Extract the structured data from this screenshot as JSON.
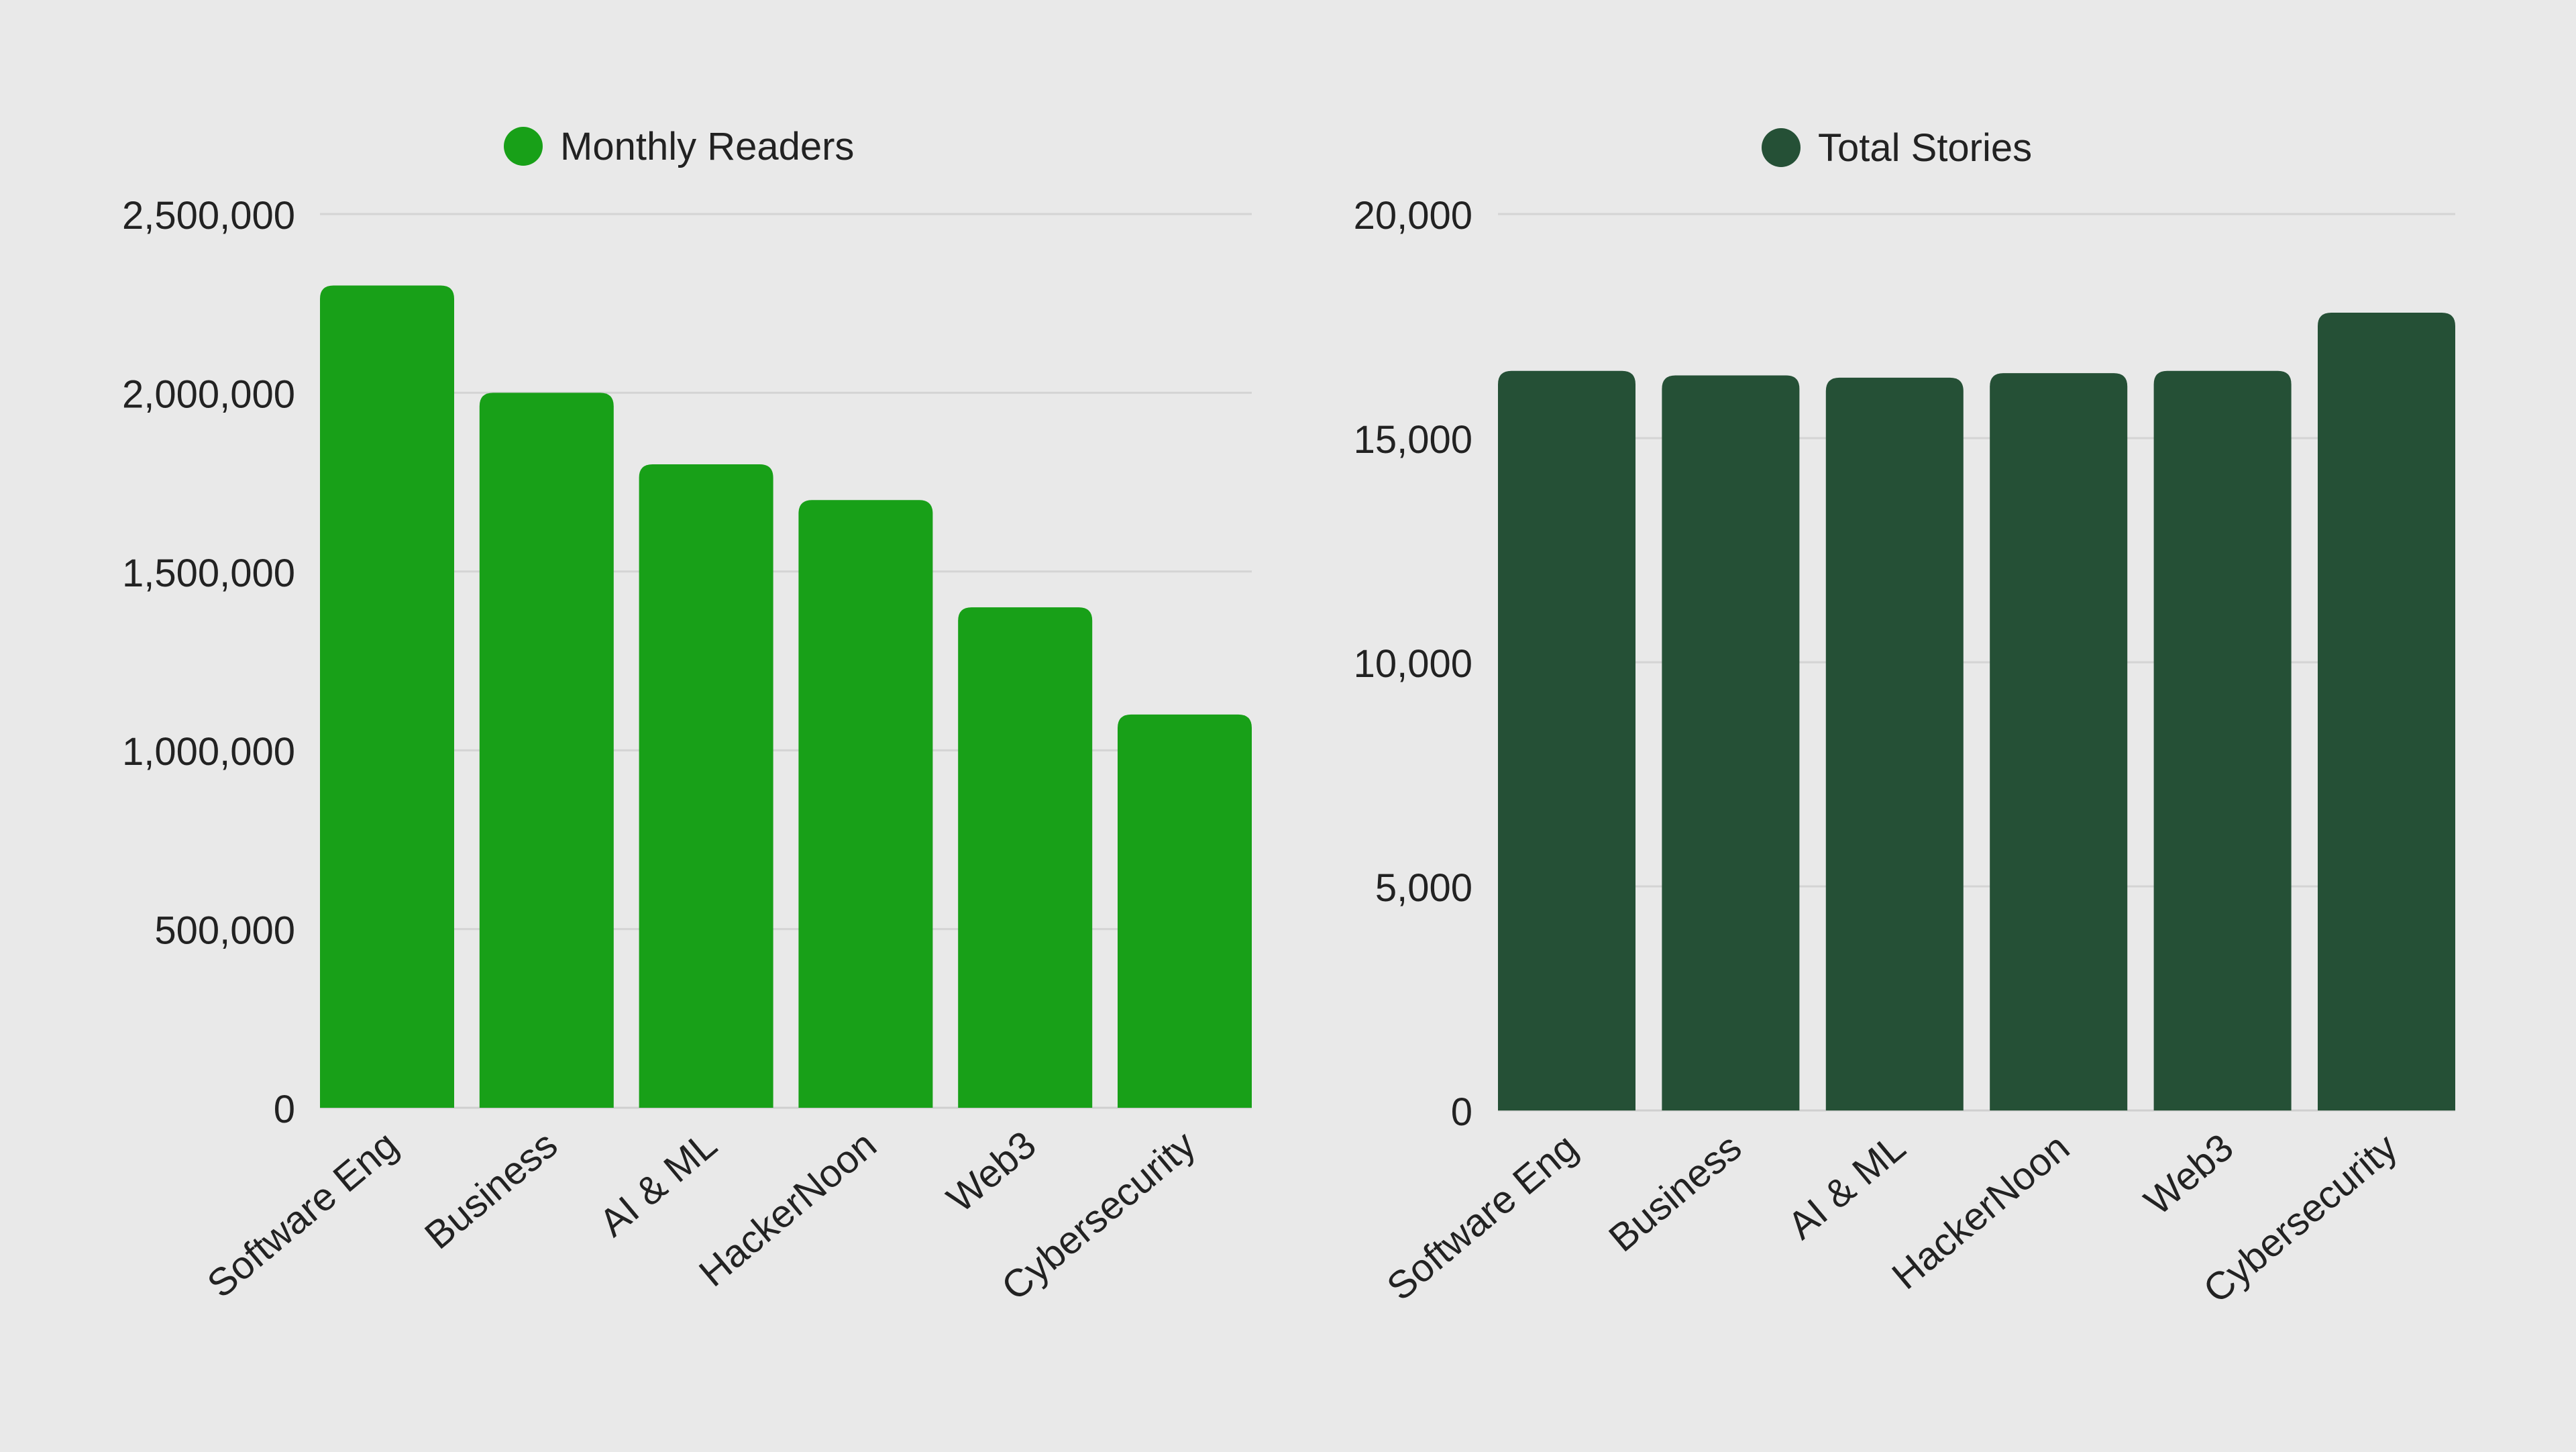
{
  "chart_data": [
    {
      "type": "bar",
      "categories": [
        "Software Eng",
        "Business",
        "AI & ML",
        "HackerNoon",
        "Web3",
        "Cybersecurity"
      ],
      "series": [
        {
          "name": "Monthly Readers",
          "values": [
            2300000,
            2000000,
            1800000,
            1700000,
            1400000,
            1100000
          ]
        }
      ],
      "yticks": [
        "0",
        "500,000",
        "1,000,000",
        "1,500,000",
        "2,000,000",
        "2,500,000"
      ],
      "ylim": [
        0,
        2500000
      ],
      "grid": true,
      "legend": "top-center",
      "color": "#18a018"
    },
    {
      "type": "bar",
      "categories": [
        "Software Eng",
        "Business",
        "AI & ML",
        "HackerNoon",
        "Web3",
        "Cybersecurity"
      ],
      "series": [
        {
          "name": "Total Stories",
          "values": [
            16500,
            16400,
            16350,
            16450,
            16500,
            17800
          ]
        }
      ],
      "yticks": [
        "0",
        "5,000",
        "10,000",
        "15,000",
        "20,000"
      ],
      "ylim": [
        0,
        20000
      ],
      "grid": true,
      "legend": "top-center",
      "color": "#255036"
    }
  ]
}
